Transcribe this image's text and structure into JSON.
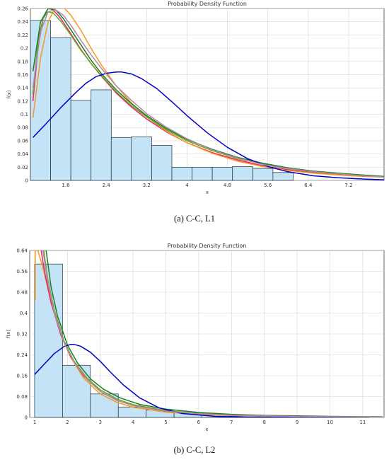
{
  "chart_data": [
    {
      "type": "bar",
      "title": "Probability Density Function",
      "xlabel": "x",
      "ylabel": "f(x)",
      "caption": "(a) C-C, L1",
      "xlim": [
        0.9,
        7.9
      ],
      "ylim": [
        0,
        0.26
      ],
      "x_ticks": [
        "1.6",
        "2.4",
        "3.2",
        "4",
        "4.8",
        "5.6",
        "6.4",
        "7.2"
      ],
      "y_ticks": [
        "0",
        "0.02",
        "0.04",
        "0.06",
        "0.08",
        "0.1",
        "0.12",
        "0.14",
        "0.16",
        "0.18",
        "0.2",
        "0.22",
        "0.24",
        "0.26"
      ],
      "grid": true,
      "histogram": {
        "bin_edges": [
          0.9,
          1.3,
          1.7,
          2.1,
          2.5,
          2.9,
          3.3,
          3.7,
          4.1,
          4.5,
          4.9,
          5.3,
          5.7,
          6.1,
          6.5
        ],
        "density": [
          0.242,
          0.216,
          0.121,
          0.137,
          0.065,
          0.066,
          0.053,
          0.02,
          0.02,
          0.02,
          0.021,
          0.018,
          0.012,
          0.0
        ]
      },
      "series": [
        {
          "color": "#e8206e",
          "x": [
            0.95,
            1.05,
            1.15,
            1.25,
            1.35,
            1.5,
            1.7,
            1.9,
            2.1,
            2.3,
            2.6,
            2.9,
            3.2,
            3.6,
            4.0,
            4.5,
            5.0,
            5.5,
            6.0,
            6.5,
            7.0,
            7.5,
            7.9
          ],
          "y": [
            0.12,
            0.2,
            0.245,
            0.26,
            0.258,
            0.245,
            0.222,
            0.198,
            0.177,
            0.158,
            0.132,
            0.111,
            0.093,
            0.073,
            0.057,
            0.042,
            0.031,
            0.022,
            0.016,
            0.012,
            0.009,
            0.007,
            0.006
          ]
        },
        {
          "color": "#f59a1b",
          "x": [
            0.95,
            1.1,
            1.25,
            1.4,
            1.55,
            1.7,
            1.9,
            2.1,
            2.3,
            2.6,
            2.9,
            3.2,
            3.6,
            4.0,
            4.5,
            5.0,
            5.5,
            6.0,
            6.5,
            7.0,
            7.5,
            7.9
          ],
          "y": [
            0.095,
            0.185,
            0.24,
            0.262,
            0.262,
            0.25,
            0.227,
            0.2,
            0.175,
            0.143,
            0.117,
            0.096,
            0.074,
            0.057,
            0.041,
            0.029,
            0.021,
            0.015,
            0.011,
            0.008,
            0.006,
            0.005
          ]
        },
        {
          "color": "#6aa51e",
          "x": [
            0.95,
            1.05,
            1.15,
            1.25,
            1.35,
            1.5,
            1.7,
            1.9,
            2.1,
            2.3,
            2.6,
            2.9,
            3.2,
            3.6,
            4.0,
            4.5,
            5.0,
            5.5,
            6.0,
            6.5,
            7.0,
            7.5,
            7.9
          ],
          "y": [
            0.13,
            0.21,
            0.245,
            0.255,
            0.253,
            0.241,
            0.22,
            0.197,
            0.177,
            0.159,
            0.134,
            0.113,
            0.096,
            0.076,
            0.06,
            0.045,
            0.033,
            0.025,
            0.018,
            0.013,
            0.01,
            0.008,
            0.006
          ]
        },
        {
          "color": "#1b7d2a",
          "x": [
            0.95,
            1.1,
            1.25,
            1.4,
            1.55,
            1.7,
            1.9,
            2.1,
            2.3,
            2.6,
            2.9,
            3.2,
            3.6,
            4.0,
            4.5,
            5.0,
            5.5,
            6.0,
            6.5,
            7.0,
            7.5,
            7.9
          ],
          "y": [
            0.165,
            0.24,
            0.26,
            0.258,
            0.245,
            0.228,
            0.205,
            0.182,
            0.162,
            0.137,
            0.116,
            0.098,
            0.078,
            0.062,
            0.047,
            0.035,
            0.026,
            0.019,
            0.014,
            0.011,
            0.008,
            0.006
          ]
        },
        {
          "color": "#0000c8",
          "x": [
            0.95,
            1.2,
            1.5,
            1.8,
            2.0,
            2.2,
            2.4,
            2.6,
            2.7,
            2.9,
            3.1,
            3.4,
            3.7,
            4.0,
            4.4,
            4.8,
            5.2,
            5.6,
            6.0,
            6.5,
            7.0,
            7.5,
            7.9
          ],
          "y": [
            0.065,
            0.085,
            0.11,
            0.133,
            0.147,
            0.157,
            0.162,
            0.164,
            0.164,
            0.161,
            0.154,
            0.139,
            0.119,
            0.098,
            0.072,
            0.05,
            0.033,
            0.021,
            0.013,
            0.007,
            0.004,
            0.002,
            0.001
          ]
        },
        {
          "color": "#b08aa8",
          "x": [
            0.95,
            1.1,
            1.25,
            1.4,
            1.55,
            1.7,
            1.9,
            2.1,
            2.3,
            2.6,
            2.9,
            3.2,
            3.6,
            4.0,
            4.5,
            5.0,
            5.5,
            6.0,
            6.5,
            7.0,
            7.5,
            7.9
          ],
          "y": [
            0.14,
            0.225,
            0.255,
            0.258,
            0.25,
            0.235,
            0.212,
            0.19,
            0.17,
            0.143,
            0.121,
            0.101,
            0.08,
            0.063,
            0.046,
            0.034,
            0.024,
            0.018,
            0.013,
            0.01,
            0.007,
            0.005
          ]
        }
      ]
    },
    {
      "type": "bar",
      "title": "Probability Density Function",
      "xlabel": "x",
      "ylabel": "f(x)",
      "caption": "(b) C-C, L2",
      "xlim": [
        0.85,
        11.65
      ],
      "ylim": [
        0,
        0.64
      ],
      "x_ticks": [
        "1",
        "2",
        "3",
        "4",
        "5",
        "6",
        "7",
        "8",
        "9",
        "10",
        "11"
      ],
      "y_ticks": [
        "0",
        "0.08",
        "0.16",
        "0.24",
        "0.32",
        "0.4",
        "0.48",
        "0.56",
        "0.64"
      ],
      "grid": true,
      "histogram": {
        "bin_edges": [
          1.0,
          1.85,
          2.7,
          3.55,
          4.4,
          5.25,
          6.1,
          6.95,
          7.8,
          8.65,
          9.5,
          10.35,
          11.2
        ],
        "density": [
          0.588,
          0.2,
          0.09,
          0.04,
          0.028,
          0.018,
          0.009,
          0.005,
          0.004,
          0.003,
          0.003,
          0.002
        ]
      },
      "series": [
        {
          "color": "#f59a1b",
          "x": [
            1.02,
            1.02,
            1.1,
            1.3,
            1.5,
            1.8,
            2.1,
            2.5,
            3.0,
            3.5,
            4.0,
            5.0,
            6.0,
            7.0,
            8.0,
            9.0,
            10.0,
            11.0,
            11.6
          ],
          "y": [
            0.45,
            0.64,
            0.64,
            0.55,
            0.44,
            0.32,
            0.23,
            0.15,
            0.09,
            0.058,
            0.039,
            0.02,
            0.011,
            0.007,
            0.005,
            0.003,
            0.002,
            0.002,
            0.001
          ]
        },
        {
          "color": "#e8206e",
          "x": [
            1.2,
            1.3,
            1.5,
            1.8,
            2.1,
            2.5,
            3.0,
            3.5,
            4.0,
            5.0,
            6.0,
            7.0,
            8.0,
            9.0,
            10.0,
            11.0,
            11.6
          ],
          "y": [
            0.64,
            0.56,
            0.44,
            0.315,
            0.232,
            0.158,
            0.1,
            0.066,
            0.045,
            0.024,
            0.014,
            0.009,
            0.006,
            0.004,
            0.003,
            0.002,
            0.002
          ]
        },
        {
          "color": "#6aa51e",
          "x": [
            1.28,
            1.4,
            1.6,
            1.9,
            2.2,
            2.6,
            3.0,
            3.5,
            4.0,
            5.0,
            6.0,
            7.0,
            8.0,
            9.0,
            10.0,
            11.0,
            11.6
          ],
          "y": [
            0.64,
            0.53,
            0.41,
            0.292,
            0.216,
            0.15,
            0.106,
            0.071,
            0.049,
            0.026,
            0.015,
            0.009,
            0.006,
            0.004,
            0.003,
            0.002,
            0.002
          ]
        },
        {
          "color": "#1b7d2a",
          "x": [
            1.35,
            1.5,
            1.7,
            2.0,
            2.3,
            2.7,
            3.1,
            3.6,
            4.2,
            5.0,
            6.0,
            7.0,
            8.0,
            9.0,
            10.0,
            11.0,
            11.6
          ],
          "y": [
            0.64,
            0.5,
            0.388,
            0.278,
            0.21,
            0.148,
            0.108,
            0.075,
            0.05,
            0.032,
            0.019,
            0.012,
            0.008,
            0.006,
            0.004,
            0.003,
            0.003
          ]
        },
        {
          "color": "#0000c8",
          "x": [
            1.0,
            1.3,
            1.6,
            1.9,
            2.1,
            2.2,
            2.4,
            2.7,
            3.0,
            3.3,
            3.7,
            4.2,
            4.8,
            5.5,
            6.5,
            7.5,
            9.0,
            10.5,
            11.6
          ],
          "y": [
            0.165,
            0.205,
            0.245,
            0.272,
            0.28,
            0.28,
            0.273,
            0.25,
            0.215,
            0.175,
            0.125,
            0.075,
            0.036,
            0.015,
            0.004,
            0.001,
            0.0,
            0.0,
            0.0
          ]
        },
        {
          "color": "#b08aa8",
          "x": [
            1.25,
            1.4,
            1.6,
            1.9,
            2.2,
            2.6,
            3.0,
            3.5,
            4.0,
            5.0,
            6.0,
            7.0,
            8.0,
            9.0,
            10.0,
            11.0,
            11.6
          ],
          "y": [
            0.64,
            0.52,
            0.4,
            0.285,
            0.212,
            0.145,
            0.1,
            0.066,
            0.045,
            0.024,
            0.014,
            0.009,
            0.006,
            0.004,
            0.003,
            0.002,
            0.002
          ]
        }
      ]
    }
  ],
  "colors": {
    "bar_fill": "#c5e3f6",
    "bar_stroke": "#1c2f3a",
    "grid": "#d6d6d6",
    "axis": "#444444"
  }
}
